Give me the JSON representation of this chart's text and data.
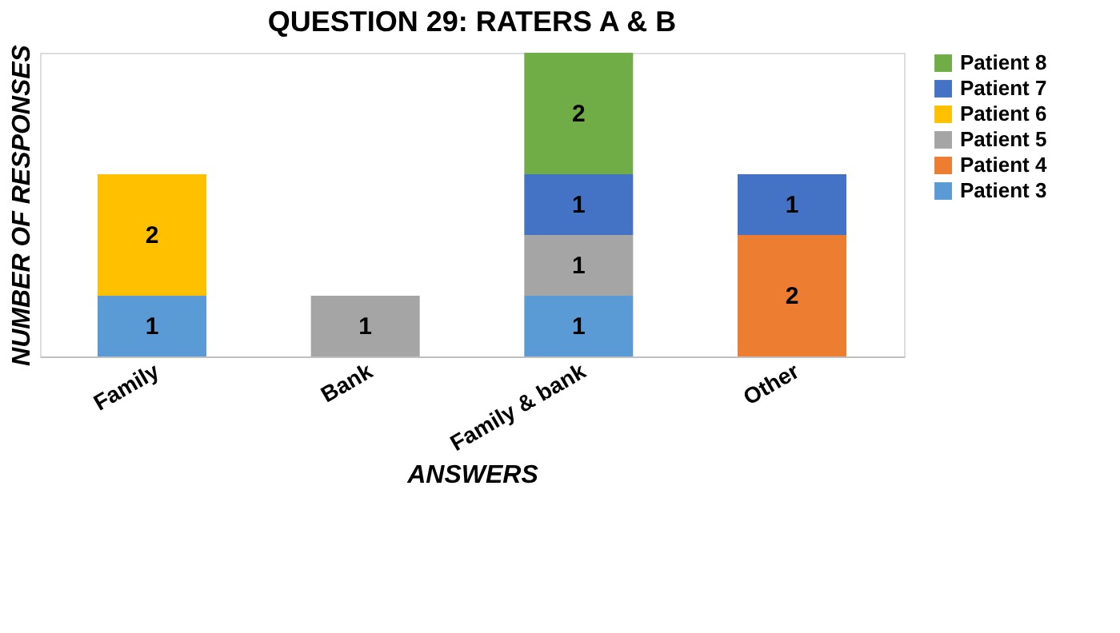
{
  "chart_data": {
    "type": "bar",
    "title": "QUESTION 29: RATERS A & B",
    "xlabel": "ANSWERS",
    "ylabel": "NUMBER OF RESPONSES",
    "categories": [
      "Family",
      "Bank",
      "Family & bank",
      "Other"
    ],
    "stacked": true,
    "data_labels": true,
    "legend": "top right",
    "tick_labels": "x",
    "grid": false,
    "ylim": [
      0,
      5
    ],
    "series": [
      {
        "name": "Patient 3",
        "color": "#5b9bd5",
        "values": [
          1,
          null,
          1,
          null
        ]
      },
      {
        "name": "Patient 4",
        "color": "#ed7d31",
        "values": [
          null,
          null,
          null,
          2
        ]
      },
      {
        "name": "Patient 5",
        "color": "#a5a5a5",
        "values": [
          null,
          1,
          1,
          null
        ]
      },
      {
        "name": "Patient 6",
        "color": "#ffc000",
        "values": [
          2,
          null,
          null,
          null
        ]
      },
      {
        "name": "Patient 7",
        "color": "#4472c4",
        "values": [
          null,
          null,
          1,
          1
        ]
      },
      {
        "name": "Patient 8",
        "color": "#70ad47",
        "values": [
          null,
          null,
          2,
          null
        ]
      }
    ]
  }
}
